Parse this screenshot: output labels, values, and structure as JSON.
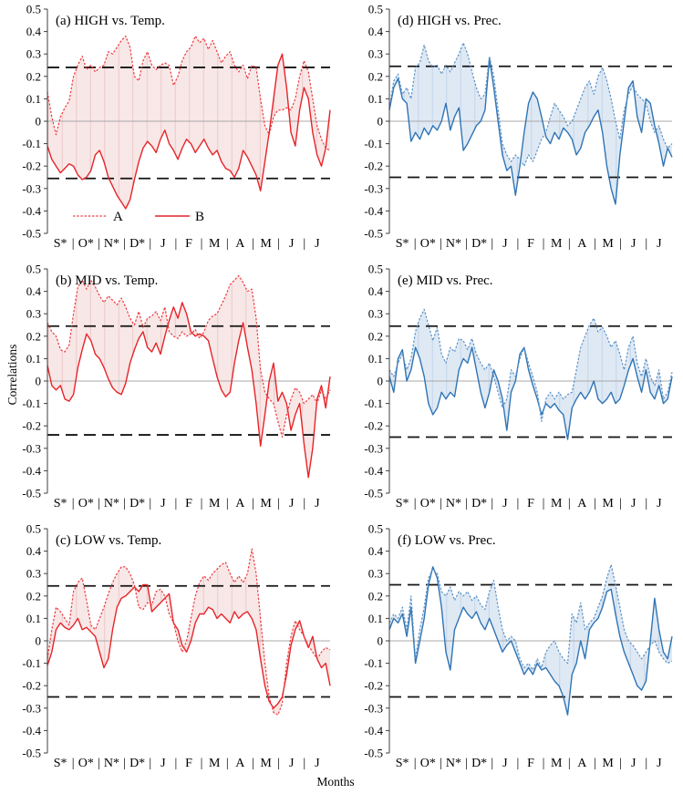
{
  "figure": {
    "ylabel": "Correlations",
    "xlabel": "Months",
    "legend": {
      "series_a_label": "A",
      "series_b_label": "B"
    },
    "colors": {
      "red": {
        "line_a": "#ef3b40",
        "line_b": "#e62428",
        "fill": "#f8e7e7",
        "stripe": "#ecc9c9"
      },
      "blue": {
        "line_a": "#5b93c8",
        "line_b": "#2f74b5",
        "fill": "#dfe9f4",
        "stripe": "#c3d6ea"
      },
      "threshold": "#141414",
      "zero_line": "#a8a8a8",
      "axis": "#3f3f3f"
    }
  },
  "chart_data": {
    "type": "line",
    "ylim": [
      -0.5,
      0.5
    ],
    "y_ticks": [
      "0.5",
      "0.4",
      "0.3",
      "0.2",
      "0.1",
      "0",
      "-0.1",
      "-0.2",
      "-0.3",
      "-0.4",
      "-0.5"
    ],
    "months": [
      "S*",
      "O*",
      "N*",
      "D*",
      "J",
      "F",
      "M",
      "A",
      "M",
      "J",
      "J"
    ],
    "x_separator": "|",
    "points_per_month": 6,
    "grid": "zero line only; dashed significance thresholds",
    "legend_position": "inside panel (a), lower left",
    "panels": [
      {
        "id": "a",
        "title": "(a) HIGH vs. Temp.",
        "scheme": "red",
        "threshold_upper": 0.24,
        "threshold_lower": -0.255,
        "legend_visible": true,
        "series": [
          {
            "name": "A",
            "line_style": "dotted",
            "values": [
              0.13,
              0.02,
              -0.06,
              0.02,
              0.06,
              0.09,
              0.2,
              0.25,
              0.29,
              0.23,
              0.25,
              0.22,
              0.24,
              0.25,
              0.31,
              0.3,
              0.33,
              0.36,
              0.38,
              0.33,
              0.2,
              0.18,
              0.27,
              0.31,
              0.25,
              0.23,
              0.25,
              0.26,
              0.25,
              0.16,
              0.2,
              0.27,
              0.31,
              0.33,
              0.38,
              0.35,
              0.37,
              0.32,
              0.36,
              0.31,
              0.26,
              0.29,
              0.31,
              0.25,
              0.22,
              0.25,
              0.19,
              0.25,
              0.24,
              0.1,
              -0.02,
              -0.06,
              0.02,
              0.05,
              0.05,
              0.06,
              0.05,
              0.1,
              0.2,
              0.27,
              0.22,
              0.1,
              -0.02,
              -0.08,
              -0.12,
              -0.13
            ]
          },
          {
            "name": "B",
            "line_style": "solid",
            "values": [
              -0.11,
              -0.17,
              -0.2,
              -0.23,
              -0.21,
              -0.19,
              -0.2,
              -0.24,
              -0.26,
              -0.25,
              -0.22,
              -0.15,
              -0.13,
              -0.18,
              -0.25,
              -0.29,
              -0.33,
              -0.36,
              -0.39,
              -0.35,
              -0.26,
              -0.18,
              -0.12,
              -0.09,
              -0.11,
              -0.14,
              -0.08,
              -0.04,
              -0.1,
              -0.13,
              -0.17,
              -0.12,
              -0.08,
              -0.1,
              -0.14,
              -0.11,
              -0.08,
              -0.12,
              -0.15,
              -0.13,
              -0.18,
              -0.21,
              -0.22,
              -0.25,
              -0.21,
              -0.13,
              -0.16,
              -0.2,
              -0.24,
              -0.31,
              -0.18,
              -0.05,
              0.1,
              0.25,
              0.3,
              0.15,
              -0.05,
              -0.11,
              0.05,
              0.15,
              0.1,
              -0.05,
              -0.15,
              -0.2,
              -0.12,
              0.05
            ]
          }
        ]
      },
      {
        "id": "b",
        "title": "(b) MID vs. Temp.",
        "scheme": "red",
        "threshold_upper": 0.245,
        "threshold_lower": -0.24,
        "legend_visible": false,
        "series": [
          {
            "name": "A",
            "line_style": "dotted",
            "values": [
              0.26,
              0.22,
              0.2,
              0.14,
              0.13,
              0.16,
              0.3,
              0.42,
              0.45,
              0.41,
              0.45,
              0.42,
              0.38,
              0.35,
              0.38,
              0.36,
              0.34,
              0.37,
              0.33,
              0.28,
              0.25,
              0.31,
              0.24,
              0.28,
              0.29,
              0.31,
              0.27,
              0.33,
              0.22,
              0.2,
              0.19,
              0.22,
              0.2,
              0.21,
              0.23,
              0.19,
              0.22,
              0.27,
              0.29,
              0.3,
              0.34,
              0.38,
              0.43,
              0.45,
              0.47,
              0.44,
              0.4,
              0.41,
              0.28,
              0.05,
              -0.05,
              -0.08,
              -0.1,
              -0.18,
              -0.25,
              -0.15,
              -0.08,
              -0.03,
              -0.05,
              -0.1,
              -0.08,
              -0.06,
              -0.1,
              -0.04,
              -0.08,
              -0.04
            ]
          },
          {
            "name": "B",
            "line_style": "solid",
            "values": [
              0.07,
              -0.02,
              -0.04,
              -0.02,
              -0.08,
              -0.09,
              -0.06,
              0.06,
              0.14,
              0.21,
              0.18,
              0.12,
              0.1,
              0.06,
              0.01,
              -0.03,
              -0.05,
              -0.06,
              -0.01,
              0.08,
              0.14,
              0.19,
              0.22,
              0.15,
              0.13,
              0.17,
              0.12,
              0.2,
              0.27,
              0.33,
              0.28,
              0.35,
              0.3,
              0.22,
              0.2,
              0.21,
              0.2,
              0.18,
              0.1,
              0.02,
              -0.04,
              -0.07,
              -0.05,
              0.08,
              0.18,
              0.26,
              0.15,
              0.05,
              -0.1,
              -0.29,
              -0.15,
              0.0,
              0.08,
              -0.09,
              -0.05,
              -0.1,
              -0.22,
              -0.15,
              -0.1,
              -0.28,
              -0.43,
              -0.3,
              -0.08,
              -0.02,
              -0.12,
              0.02
            ]
          }
        ]
      },
      {
        "id": "c",
        "title": "(c) LOW vs. Temp.",
        "scheme": "red",
        "threshold_upper": 0.245,
        "threshold_lower": -0.25,
        "legend_visible": false,
        "series": [
          {
            "name": "A",
            "line_style": "dotted",
            "values": [
              -0.08,
              0.05,
              0.15,
              0.13,
              0.1,
              0.07,
              0.22,
              0.26,
              0.28,
              0.18,
              0.07,
              0.05,
              0.1,
              0.15,
              0.21,
              0.26,
              0.3,
              0.33,
              0.33,
              0.3,
              0.25,
              0.15,
              0.14,
              0.17,
              0.16,
              0.22,
              0.23,
              0.2,
              0.12,
              0.08,
              0.0,
              -0.05,
              0.0,
              0.1,
              0.2,
              0.26,
              0.29,
              0.27,
              0.3,
              0.32,
              0.34,
              0.35,
              0.3,
              0.26,
              0.29,
              0.26,
              0.3,
              0.41,
              0.3,
              0.1,
              -0.1,
              -0.25,
              -0.32,
              -0.33,
              -0.28,
              -0.1,
              0.02,
              0.09,
              0.05,
              0.02,
              -0.02,
              -0.05,
              -0.08,
              -0.05,
              -0.03,
              -0.04
            ]
          },
          {
            "name": "B",
            "line_style": "solid",
            "values": [
              -0.11,
              -0.05,
              0.05,
              0.08,
              0.06,
              0.05,
              0.07,
              0.1,
              0.05,
              0.06,
              0.04,
              0.02,
              -0.05,
              -0.12,
              -0.08,
              0.05,
              0.15,
              0.19,
              0.2,
              0.22,
              0.24,
              0.22,
              0.25,
              0.25,
              0.13,
              0.15,
              0.17,
              0.19,
              0.21,
              0.08,
              0.05,
              -0.02,
              -0.05,
              0.0,
              0.08,
              0.12,
              0.12,
              0.15,
              0.14,
              0.1,
              0.12,
              0.1,
              0.08,
              0.13,
              0.1,
              0.12,
              0.13,
              0.1,
              0.05,
              -0.08,
              -0.2,
              -0.27,
              -0.3,
              -0.28,
              -0.25,
              -0.15,
              -0.02,
              0.05,
              0.09,
              0.02,
              -0.03,
              0.02,
              -0.08,
              -0.12,
              -0.1,
              -0.2
            ]
          }
        ]
      },
      {
        "id": "d",
        "title": "(d) HIGH vs. Prec.",
        "scheme": "blue",
        "threshold_upper": 0.245,
        "threshold_lower": -0.25,
        "legend_visible": false,
        "series": [
          {
            "name": "A",
            "line_style": "dotted",
            "values": [
              0.06,
              0.18,
              0.21,
              0.12,
              0.15,
              0.1,
              0.24,
              0.26,
              0.34,
              0.27,
              0.24,
              0.25,
              0.21,
              0.25,
              0.22,
              0.26,
              0.3,
              0.35,
              0.3,
              0.22,
              0.15,
              0.1,
              0.12,
              0.29,
              0.2,
              0.05,
              -0.1,
              -0.15,
              -0.18,
              -0.15,
              -0.17,
              -0.2,
              -0.15,
              -0.18,
              -0.13,
              -0.08,
              -0.05,
              0.02,
              0.08,
              0.05,
              0.02,
              -0.02,
              0.0,
              0.05,
              0.1,
              0.15,
              0.18,
              0.12,
              0.2,
              0.24,
              0.18,
              0.1,
              0.0,
              -0.08,
              0.05,
              0.12,
              0.16,
              0.12,
              0.1,
              0.08,
              0.0,
              -0.05,
              -0.02,
              -0.08,
              -0.12,
              -0.1
            ]
          },
          {
            "name": "B",
            "line_style": "solid",
            "values": [
              0.05,
              0.15,
              0.19,
              0.1,
              0.08,
              -0.09,
              -0.05,
              -0.08,
              -0.03,
              -0.06,
              -0.02,
              -0.04,
              0.0,
              0.08,
              -0.04,
              0.02,
              0.06,
              -0.13,
              -0.1,
              -0.06,
              -0.02,
              0.0,
              0.05,
              0.28,
              0.15,
              0.0,
              -0.15,
              -0.22,
              -0.2,
              -0.33,
              -0.2,
              -0.05,
              0.08,
              0.13,
              0.1,
              0.02,
              -0.07,
              -0.1,
              -0.05,
              -0.08,
              -0.03,
              -0.05,
              -0.08,
              -0.15,
              -0.12,
              -0.05,
              -0.02,
              0.02,
              0.05,
              -0.05,
              -0.2,
              -0.3,
              -0.37,
              -0.15,
              0.0,
              0.15,
              0.18,
              0.02,
              -0.05,
              0.1,
              0.08,
              -0.02,
              -0.1,
              -0.2,
              -0.12,
              -0.16
            ]
          }
        ]
      },
      {
        "id": "e",
        "title": "(e) MID vs. Prec.",
        "scheme": "blue",
        "threshold_upper": 0.245,
        "threshold_lower": -0.25,
        "legend_visible": false,
        "series": [
          {
            "name": "A",
            "line_style": "dotted",
            "values": [
              0.05,
              0.02,
              0.08,
              0.12,
              0.05,
              0.1,
              0.22,
              0.28,
              0.32,
              0.25,
              0.18,
              0.24,
              0.12,
              0.08,
              0.15,
              0.13,
              0.19,
              0.18,
              0.14,
              0.19,
              0.12,
              0.08,
              0.05,
              0.08,
              0.02,
              -0.05,
              -0.12,
              -0.08,
              0.05,
              0.02,
              0.1,
              0.15,
              0.08,
              0.02,
              -0.05,
              -0.18,
              -0.08,
              -0.05,
              -0.08,
              -0.05,
              -0.08,
              -0.06,
              -0.05,
              0.05,
              0.15,
              0.2,
              0.25,
              0.28,
              0.22,
              0.24,
              0.2,
              0.15,
              0.18,
              0.12,
              0.05,
              0.15,
              0.2,
              0.08,
              0.02,
              0.1,
              0.02,
              -0.02,
              0.05,
              -0.08,
              -0.05,
              0.04
            ]
          },
          {
            "name": "B",
            "line_style": "solid",
            "values": [
              0.02,
              -0.05,
              0.1,
              0.14,
              0.0,
              0.05,
              0.15,
              0.1,
              0.02,
              -0.1,
              -0.15,
              -0.12,
              -0.05,
              -0.08,
              -0.05,
              -0.07,
              0.05,
              0.1,
              0.08,
              0.15,
              0.05,
              -0.05,
              -0.12,
              -0.05,
              0.05,
              0.0,
              -0.08,
              -0.22,
              -0.05,
              0.0,
              0.12,
              0.15,
              0.05,
              -0.02,
              -0.08,
              -0.15,
              -0.1,
              -0.12,
              -0.1,
              -0.13,
              -0.15,
              -0.26,
              -0.12,
              -0.08,
              -0.05,
              -0.08,
              -0.05,
              0.0,
              -0.08,
              -0.1,
              -0.08,
              -0.05,
              -0.1,
              -0.08,
              -0.02,
              0.05,
              0.1,
              0.02,
              -0.05,
              0.05,
              -0.05,
              -0.08,
              -0.02,
              -0.1,
              -0.08,
              0.02
            ]
          }
        ]
      },
      {
        "id": "f",
        "title": "(f) LOW vs. Prec.",
        "scheme": "blue",
        "threshold_upper": 0.25,
        "threshold_lower": -0.25,
        "legend_visible": false,
        "series": [
          {
            "name": "A",
            "line_style": "dotted",
            "values": [
              0.08,
              0.12,
              0.1,
              0.15,
              0.05,
              0.2,
              -0.08,
              0.05,
              0.15,
              0.28,
              0.32,
              0.3,
              0.22,
              0.2,
              0.24,
              0.18,
              0.22,
              0.2,
              0.22,
              0.18,
              0.2,
              0.16,
              0.14,
              0.22,
              0.27,
              0.15,
              0.05,
              0.0,
              0.02,
              0.0,
              -0.08,
              -0.12,
              -0.1,
              -0.13,
              -0.08,
              -0.12,
              -0.05,
              -0.02,
              0.0,
              -0.05,
              -0.08,
              -0.1,
              0.12,
              0.08,
              0.17,
              0.05,
              0.08,
              0.1,
              0.15,
              0.2,
              0.28,
              0.34,
              0.25,
              0.15,
              0.05,
              0.0,
              -0.02,
              -0.05,
              -0.08,
              -0.05,
              -0.02,
              0.0,
              -0.05,
              -0.08,
              -0.1,
              -0.09
            ]
          },
          {
            "name": "B",
            "line_style": "solid",
            "values": [
              0.05,
              0.1,
              0.08,
              0.12,
              0.02,
              0.15,
              -0.1,
              0.0,
              0.1,
              0.25,
              0.33,
              0.28,
              0.15,
              -0.05,
              -0.13,
              0.05,
              0.1,
              0.15,
              0.12,
              0.1,
              0.13,
              0.08,
              0.05,
              0.1,
              0.05,
              0.0,
              -0.05,
              -0.02,
              0.0,
              -0.05,
              -0.1,
              -0.15,
              -0.12,
              -0.15,
              -0.1,
              -0.13,
              -0.12,
              -0.15,
              -0.18,
              -0.2,
              -0.25,
              -0.33,
              -0.15,
              -0.1,
              0.0,
              -0.08,
              0.05,
              0.08,
              0.1,
              0.15,
              0.22,
              0.23,
              0.12,
              0.02,
              -0.05,
              -0.1,
              -0.15,
              -0.2,
              -0.22,
              -0.18,
              0.0,
              0.19,
              0.05,
              -0.05,
              -0.08,
              0.02
            ]
          }
        ]
      }
    ]
  }
}
